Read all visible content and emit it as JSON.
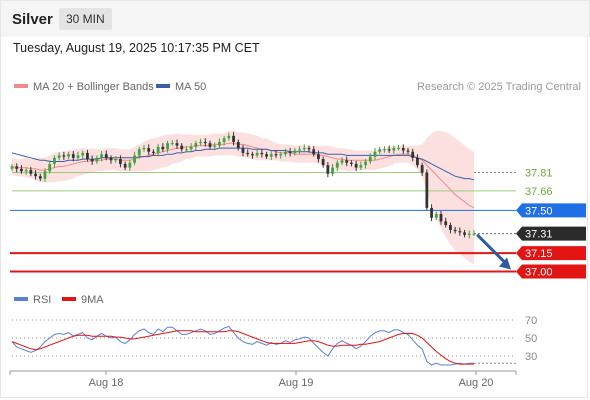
{
  "header": {
    "instrument": "Silver",
    "timeframe": "30 MIN",
    "datetime": "Tuesday, August 19, 2025 10:17:35 PM CET"
  },
  "legend": {
    "bollinger": "MA 20 + Bollinger Bands",
    "ma50": "MA 50",
    "credit": "Research © 2025 Trading Central"
  },
  "colors": {
    "up": "#3fa43f",
    "down": "#333333",
    "band": "#fbd6d6",
    "ma20": "#f08a8a",
    "ma50": "#3a5ea8",
    "green_level": "#9acd7a",
    "pivot": "#1f6fe5",
    "support": "#e21414",
    "price": "#2b2b2b",
    "arrow": "#2e5aa0",
    "rsi": "#5b7fd6",
    "rsi_ma": "#e21414"
  },
  "chart_data": [
    {
      "type": "line",
      "name": "price",
      "x_ticks": [
        "Aug 18",
        "Aug 19",
        "Aug 20"
      ],
      "ylim": [
        36.85,
        38.2
      ],
      "levels": [
        {
          "value": 37.81,
          "label": "37.81",
          "style": "resistance-dotted"
        },
        {
          "value": 37.66,
          "label": "37.66",
          "style": "resistance"
        },
        {
          "value": 37.5,
          "label": "37.50",
          "style": "pivot"
        },
        {
          "value": 37.31,
          "label": "37.31",
          "style": "last-price"
        },
        {
          "value": 37.15,
          "label": "37.15",
          "style": "support"
        },
        {
          "value": 37.0,
          "label": "37.00",
          "style": "support"
        }
      ],
      "series": [
        {
          "name": "MA 20 + Bollinger Bands"
        },
        {
          "name": "MA 50"
        }
      ],
      "close": [
        37.86,
        37.84,
        37.82,
        37.83,
        37.8,
        37.78,
        37.76,
        37.82,
        37.88,
        37.93,
        37.95,
        37.94,
        37.96,
        37.93,
        37.95,
        37.97,
        37.92,
        37.9,
        37.93,
        37.96,
        37.93,
        37.91,
        37.92,
        37.88,
        37.85,
        37.89,
        37.95,
        38.0,
        38.01,
        37.98,
        37.97,
        38.02,
        38.0,
        38.05,
        38.05,
        38.03,
        38.0,
        38.0,
        38.02,
        38.05,
        38.06,
        38.05,
        38.02,
        38.03,
        38.06,
        38.09,
        38.11,
        38.06,
        38.01,
        37.97,
        37.96,
        37.95,
        37.97,
        37.96,
        37.94,
        37.96,
        37.95,
        37.96,
        37.98,
        37.97,
        37.99,
        38.0,
        38.01,
        38.0,
        37.96,
        37.92,
        37.87,
        37.8,
        37.85,
        37.89,
        37.91,
        37.89,
        37.88,
        37.85,
        37.87,
        37.9,
        37.94,
        37.98,
        38.0,
        38.0,
        37.99,
        38.01,
        38.01,
        37.99,
        37.98,
        37.93,
        37.87,
        37.81,
        37.52,
        37.44,
        37.47,
        37.41,
        37.38,
        37.34,
        37.33,
        37.32,
        37.3,
        37.31,
        37.31
      ],
      "ma20": [
        37.86,
        37.85,
        37.85,
        37.85,
        37.84,
        37.84,
        37.83,
        37.83,
        37.84,
        37.85,
        37.86,
        37.86,
        37.87,
        37.88,
        37.89,
        37.9,
        37.9,
        37.91,
        37.91,
        37.91,
        37.92,
        37.92,
        37.92,
        37.91,
        37.91,
        37.91,
        37.92,
        37.93,
        37.94,
        37.95,
        37.96,
        37.97,
        37.98,
        37.99,
        38.0,
        38.01,
        38.01,
        38.02,
        38.02,
        38.03,
        38.03,
        38.03,
        38.03,
        38.04,
        38.04,
        38.04,
        38.05,
        38.05,
        38.04,
        38.04,
        38.03,
        38.02,
        38.01,
        38.0,
        38.0,
        37.99,
        37.98,
        37.97,
        37.97,
        37.97,
        37.96,
        37.96,
        37.96,
        37.96,
        37.96,
        37.95,
        37.95,
        37.94,
        37.93,
        37.92,
        37.92,
        37.91,
        37.91,
        37.91,
        37.91,
        37.91,
        37.91,
        37.91,
        37.92,
        37.93,
        37.94,
        37.95,
        37.96,
        37.96,
        37.96,
        37.95,
        37.93,
        37.91,
        37.87,
        37.83,
        37.79,
        37.75,
        37.71,
        37.67,
        37.63,
        37.6,
        37.57,
        37.54,
        37.52
      ],
      "bb_width": [
        0.07,
        0.07,
        0.07,
        0.08,
        0.08,
        0.09,
        0.1,
        0.1,
        0.11,
        0.12,
        0.12,
        0.12,
        0.12,
        0.12,
        0.11,
        0.11,
        0.1,
        0.1,
        0.09,
        0.09,
        0.09,
        0.09,
        0.09,
        0.09,
        0.09,
        0.09,
        0.1,
        0.11,
        0.12,
        0.13,
        0.13,
        0.13,
        0.13,
        0.13,
        0.12,
        0.12,
        0.11,
        0.1,
        0.1,
        0.09,
        0.09,
        0.09,
        0.09,
        0.09,
        0.09,
        0.09,
        0.1,
        0.1,
        0.1,
        0.1,
        0.1,
        0.1,
        0.1,
        0.09,
        0.09,
        0.08,
        0.07,
        0.07,
        0.07,
        0.07,
        0.07,
        0.07,
        0.07,
        0.07,
        0.07,
        0.07,
        0.08,
        0.09,
        0.09,
        0.09,
        0.09,
        0.09,
        0.09,
        0.08,
        0.08,
        0.08,
        0.08,
        0.08,
        0.08,
        0.08,
        0.08,
        0.07,
        0.07,
        0.07,
        0.07,
        0.08,
        0.1,
        0.13,
        0.22,
        0.3,
        0.36,
        0.4,
        0.43,
        0.45,
        0.46,
        0.46,
        0.46,
        0.46,
        0.46
      ],
      "ma50": [
        37.97,
        37.96,
        37.95,
        37.94,
        37.93,
        37.92,
        37.91,
        37.91,
        37.9,
        37.9,
        37.9,
        37.9,
        37.91,
        37.91,
        37.91,
        37.92,
        37.92,
        37.92,
        37.92,
        37.93,
        37.93,
        37.93,
        37.93,
        37.93,
        37.93,
        37.93,
        37.93,
        37.94,
        37.94,
        37.94,
        37.95,
        37.95,
        37.95,
        37.96,
        37.96,
        37.97,
        37.97,
        37.98,
        37.98,
        37.99,
        37.99,
        38.0,
        38.0,
        38.0,
        38.01,
        38.01,
        38.01,
        38.01,
        38.01,
        38.01,
        38.01,
        38.0,
        38.0,
        38.0,
        38.0,
        37.99,
        37.99,
        37.99,
        37.99,
        37.98,
        37.98,
        37.98,
        37.98,
        37.98,
        37.97,
        37.97,
        37.97,
        37.96,
        37.96,
        37.96,
        37.96,
        37.95,
        37.95,
        37.95,
        37.95,
        37.95,
        37.95,
        37.95,
        37.95,
        37.95,
        37.95,
        37.95,
        37.95,
        37.95,
        37.95,
        37.94,
        37.93,
        37.92,
        37.9,
        37.88,
        37.86,
        37.84,
        37.82,
        37.8,
        37.78,
        37.77,
        37.76,
        37.76,
        37.75
      ]
    },
    {
      "type": "line",
      "name": "rsi",
      "series": [
        {
          "name": "RSI"
        },
        {
          "name": "9MA"
        }
      ],
      "ylim": [
        15,
        80
      ],
      "yticks": [
        70,
        50,
        30
      ],
      "rsi": [
        46,
        40,
        38,
        36,
        34,
        36,
        40,
        46,
        50,
        54,
        55,
        54,
        56,
        52,
        54,
        56,
        50,
        48,
        52,
        55,
        52,
        50,
        51,
        46,
        44,
        48,
        54,
        58,
        60,
        56,
        54,
        60,
        57,
        62,
        62,
        58,
        54,
        54,
        56,
        58,
        60,
        58,
        54,
        55,
        58,
        61,
        63,
        56,
        50,
        46,
        44,
        43,
        46,
        44,
        42,
        45,
        43,
        44,
        47,
        45,
        48,
        49,
        51,
        50,
        44,
        39,
        34,
        30,
        38,
        44,
        47,
        44,
        42,
        38,
        41,
        46,
        52,
        56,
        58,
        58,
        56,
        59,
        59,
        56,
        54,
        48,
        42,
        38,
        24,
        20,
        22,
        20,
        20,
        20,
        21,
        22,
        21,
        22,
        22
      ],
      "rsi_ma": [
        46,
        44,
        42,
        40,
        38,
        37,
        38,
        40,
        42,
        44,
        46,
        48,
        50,
        52,
        53,
        53,
        53,
        52,
        52,
        52,
        52,
        52,
        51,
        51,
        50,
        49,
        49,
        50,
        51,
        52,
        53,
        54,
        55,
        56,
        57,
        58,
        58,
        58,
        58,
        57,
        57,
        57,
        57,
        57,
        57,
        57,
        58,
        58,
        57,
        55,
        53,
        51,
        49,
        47,
        45,
        44,
        44,
        44,
        44,
        44,
        44,
        45,
        46,
        47,
        47,
        46,
        44,
        42,
        41,
        41,
        42,
        42,
        42,
        42,
        43,
        43,
        44,
        45,
        46,
        48,
        50,
        52,
        54,
        55,
        55,
        55,
        53,
        50,
        45,
        40,
        35,
        31,
        27,
        24,
        22,
        21,
        21,
        21,
        21
      ]
    }
  ]
}
